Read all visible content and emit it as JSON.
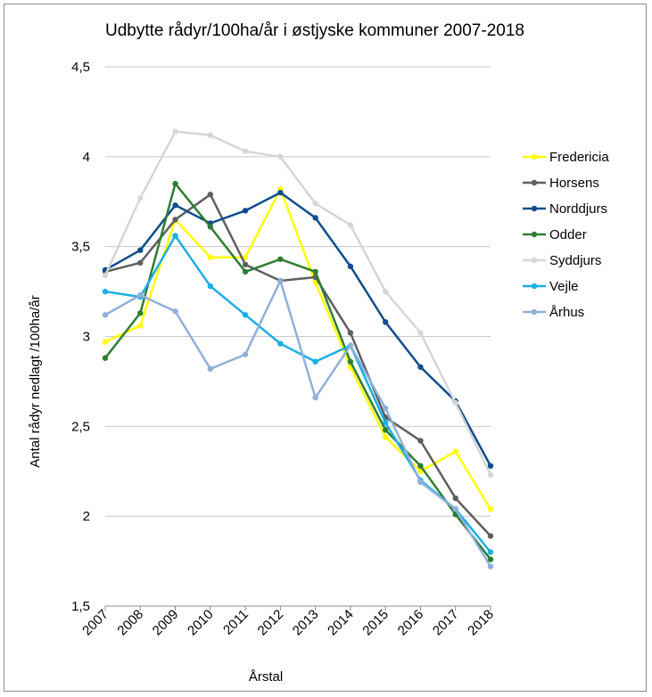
{
  "chart_data": {
    "type": "line",
    "title": "Udbytte rådyr/100ha/år i østjyske kommuner 2007-2018",
    "xlabel": "Årstal",
    "ylabel": "Antal rådyr nedlagt /100ha/år",
    "x": [
      "2007",
      "2008",
      "2009",
      "2010",
      "2011",
      "2012",
      "2013",
      "2014",
      "2015",
      "2016",
      "2017",
      "2018"
    ],
    "ylim": [
      1.5,
      4.5
    ],
    "yticks": [
      1.5,
      2,
      2.5,
      3,
      3.5,
      4,
      4.5
    ],
    "ytick_labels": [
      "1,5",
      "2",
      "2,5",
      "3",
      "3,5",
      "4",
      "4,5"
    ],
    "grid": true,
    "legend_position": "right",
    "series": [
      {
        "name": "Fredericia",
        "color": "#ffff00",
        "values": [
          2.97,
          3.06,
          3.65,
          3.44,
          3.44,
          3.82,
          3.3,
          2.83,
          2.44,
          2.25,
          2.36,
          2.04
        ]
      },
      {
        "name": "Horsens",
        "color": "#5f5f5f",
        "values": [
          3.36,
          3.41,
          3.65,
          3.79,
          3.4,
          3.31,
          3.33,
          3.02,
          2.55,
          2.42,
          2.1,
          1.89
        ]
      },
      {
        "name": "Norddjurs",
        "color": "#0f4d8c",
        "values": [
          3.37,
          3.48,
          3.73,
          3.63,
          3.7,
          3.8,
          3.66,
          3.39,
          3.08,
          2.83,
          2.64,
          2.28
        ]
      },
      {
        "name": "Odder",
        "color": "#2e7d32",
        "values": [
          2.88,
          3.13,
          3.85,
          3.61,
          3.36,
          3.43,
          3.36,
          2.86,
          2.48,
          2.28,
          2.01,
          1.76
        ]
      },
      {
        "name": "Syddjurs",
        "color": "#d6d6d6",
        "values": [
          3.34,
          3.77,
          4.14,
          4.12,
          4.03,
          4.0,
          3.74,
          3.62,
          3.25,
          3.02,
          2.63,
          2.23
        ]
      },
      {
        "name": "Vejle",
        "color": "#1aaee5",
        "values": [
          3.25,
          3.22,
          3.56,
          3.28,
          3.12,
          2.96,
          2.86,
          2.95,
          2.52,
          2.2,
          2.04,
          1.8
        ]
      },
      {
        "name": "Århus",
        "color": "#8fb0d9",
        "values": [
          3.12,
          3.23,
          3.14,
          2.82,
          2.9,
          3.31,
          2.66,
          2.95,
          2.6,
          2.19,
          2.04,
          1.72
        ]
      }
    ]
  }
}
